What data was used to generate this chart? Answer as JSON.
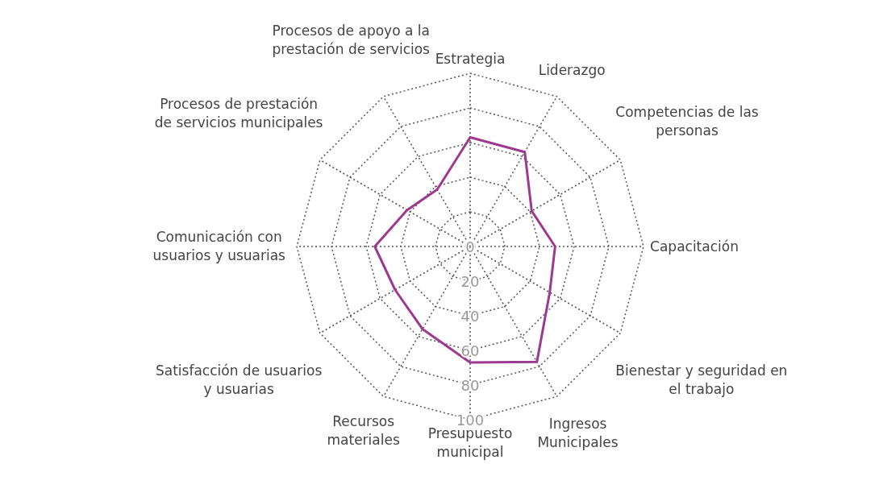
{
  "chart_data": {
    "type": "radar",
    "categories": [
      "Estrategia",
      "Liderazgo",
      "Competencias de las personas",
      "Capacitación",
      "Bienestar y seguridad en el trabajo",
      "Ingresos Municipales",
      "Presupuesto municipal",
      "Recursos materiales",
      "Satisfacción de usuarios y usuarias",
      "Comunicación con usuarios y usuarias",
      "Procesos de prestación de servicios municipales",
      "Procesos de apoyo a la prestación de servicios"
    ],
    "series": [
      {
        "color": "#9b3a8e",
        "values": [
          63,
          63,
          41,
          49,
          53,
          77,
          67,
          55,
          50,
          55,
          42,
          38
        ]
      }
    ],
    "ylim": [
      0,
      100
    ],
    "yticks": [
      0,
      20,
      40,
      60,
      80,
      100
    ],
    "grid": true,
    "legend": false,
    "marker": "none",
    "line_style": "solid"
  }
}
